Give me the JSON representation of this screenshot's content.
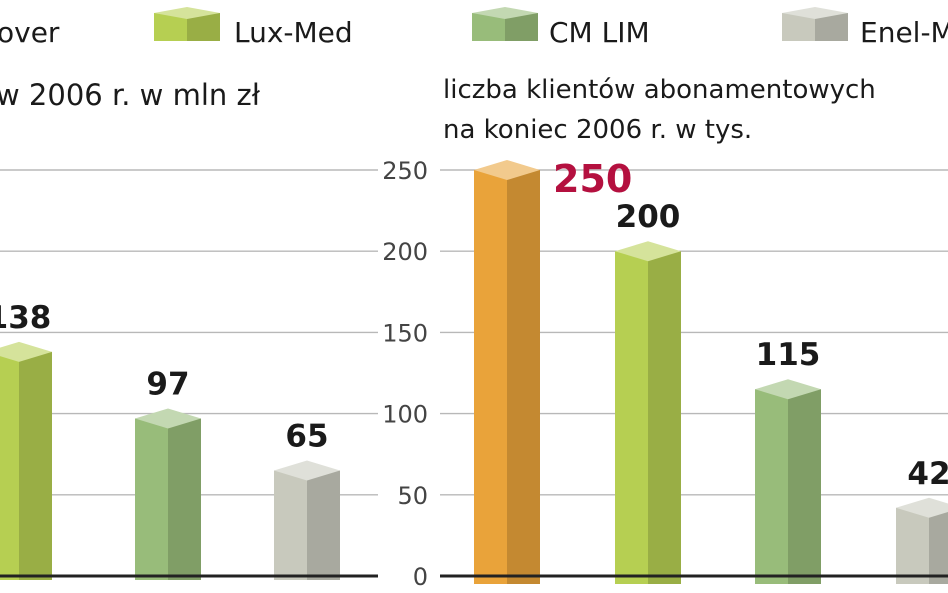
{
  "legend": [
    {
      "label": "over",
      "color": "#e9a33a"
    },
    {
      "label": "Lux-Med",
      "color": "#b6cf52"
    },
    {
      "label": "CM LIM",
      "color": "#98bc7a"
    },
    {
      "label": "Enel-M",
      "color": "#c8c9bd"
    }
  ],
  "chart_data": [
    {
      "type": "bar",
      "title": "w 2006 r. w mln zł",
      "categories": [
        "",
        "Lux-Med",
        "CM LIM",
        "Enel-M"
      ],
      "values": [
        null,
        138,
        97,
        65
      ],
      "value_labels": [
        "",
        "138",
        "97",
        "65"
      ],
      "ylim": [
        0,
        250
      ],
      "grid": true,
      "legend_position": "top",
      "colors": [
        "#e9a33a",
        "#b6cf52",
        "#98bc7a",
        "#c8c9bd"
      ]
    },
    {
      "type": "bar",
      "title_lines": [
        "liczba klientów abonamentowych",
        "na koniec 2006 r. w tys."
      ],
      "categories": [
        "",
        "Lux-Med",
        "CM LIM",
        "Enel-M"
      ],
      "values": [
        250,
        200,
        115,
        42
      ],
      "value_labels": [
        "250",
        "200",
        "115",
        "42"
      ],
      "yticks": [
        "250",
        "200",
        "150",
        "100",
        "50",
        "0"
      ],
      "ylim": [
        0,
        250
      ],
      "grid": true,
      "legend_position": "top",
      "highlight_label_color": "#b4103f",
      "colors": [
        "#e9a33a",
        "#b6cf52",
        "#98bc7a",
        "#c8c9bd"
      ]
    }
  ]
}
